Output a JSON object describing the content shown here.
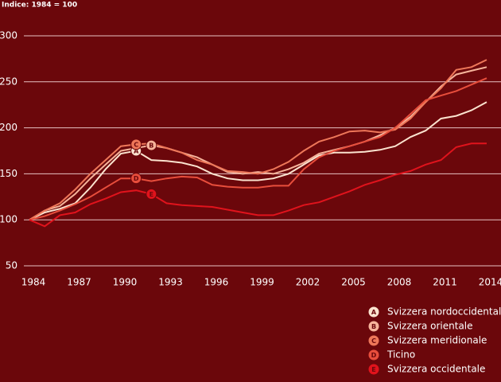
{
  "chart_data": {
    "type": "line",
    "subtitle": "Indice: 1984 = 100",
    "x": [
      1984,
      1985,
      1986,
      1987,
      1988,
      1989,
      1990,
      1991,
      1992,
      1993,
      1994,
      1995,
      1996,
      1997,
      1998,
      1999,
      2000,
      2001,
      2002,
      2003,
      2004,
      2005,
      2006,
      2007,
      2008,
      2009,
      2010,
      2011,
      2012,
      2013,
      2014
    ],
    "xlim": [
      1984,
      2014
    ],
    "xticks": [
      1984,
      1987,
      1990,
      1993,
      1996,
      1999,
      2002,
      2005,
      2008,
      2011,
      2014
    ],
    "ylim": [
      50,
      300
    ],
    "yticks": [
      50,
      100,
      150,
      200,
      250,
      300
    ],
    "grid": true,
    "legend": "bottom-right",
    "series": [
      {
        "name": "Svizzera nordoccidentale",
        "marker": "A",
        "color": "#fbe3cf",
        "values": [
          100,
          108,
          112,
          118,
          135,
          155,
          172,
          175,
          165,
          164,
          162,
          158,
          150,
          145,
          143,
          143,
          145,
          150,
          160,
          170,
          173,
          173,
          174,
          176,
          180,
          190,
          197,
          210,
          213,
          219,
          228
        ]
      },
      {
        "name": "Svizzera orientale",
        "marker": "B",
        "color": "#f6b49b",
        "values": [
          100,
          110,
          115,
          128,
          145,
          160,
          175,
          178,
          181,
          178,
          173,
          168,
          160,
          152,
          150,
          152,
          150,
          155,
          162,
          172,
          176,
          180,
          185,
          192,
          200,
          212,
          228,
          245,
          258,
          262,
          266
        ]
      },
      {
        "name": "Svizzera meridionale",
        "marker": "C",
        "color": "#ee7759",
        "values": [
          100,
          110,
          118,
          133,
          150,
          165,
          180,
          182,
          183,
          178,
          173,
          165,
          160,
          153,
          152,
          150,
          155,
          163,
          175,
          185,
          190,
          196,
          197,
          195,
          198,
          210,
          228,
          243,
          263,
          266,
          274
        ]
      },
      {
        "name": "Ticino",
        "marker": "D",
        "color": "#e84e3c",
        "values": [
          100,
          104,
          110,
          117,
          125,
          135,
          145,
          145,
          142,
          145,
          147,
          146,
          138,
          136,
          135,
          135,
          137,
          137,
          155,
          168,
          175,
          180,
          185,
          190,
          200,
          215,
          230,
          235,
          240,
          247,
          254
        ]
      },
      {
        "name": "Svizzera occidentale",
        "marker": "E",
        "color": "#e0131c",
        "values": [
          100,
          93,
          105,
          108,
          117,
          123,
          130,
          132,
          128,
          118,
          116,
          115,
          114,
          111,
          108,
          105,
          105,
          110,
          116,
          119,
          125,
          131,
          138,
          143,
          149,
          153,
          160,
          165,
          179,
          183,
          183
        ]
      }
    ]
  }
}
